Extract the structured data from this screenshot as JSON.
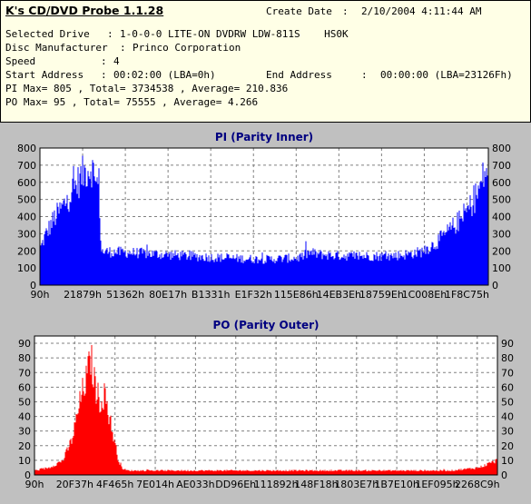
{
  "app": {
    "title": "K's CD/DVD Probe 1.1.28",
    "create_date_label": "Create Date",
    "create_date_value": "2/10/2004 4:11:44 AM"
  },
  "info": {
    "selected_drive_label": "Selected Drive",
    "selected_drive": "1-0-0-0 LITE-ON DVDRW LDW-811S    HS0K",
    "disc_manufacturer_label": "Disc Manufacturer",
    "disc_manufacturer": "Princo Corporation",
    "speed_label": "Speed",
    "speed": "4",
    "start_address_label": "Start Address",
    "start_address": "00:02:00 (LBA=0h)",
    "end_address_label": "End Address",
    "end_address": "00:00:00 (LBA=23126Fh)",
    "pi_line": "PI Max= 805 , Total= 3734538 , Average= 210.836",
    "po_line": "PO Max= 95 , Total= 75555 , Average= 4.266"
  },
  "colors": {
    "header_bg": "#ffffe6",
    "panel_bg": "#c0c0c0",
    "plot_bg": "#ffffff",
    "title_color": "#000080",
    "pi_color": "#0000ff",
    "po_color": "#ff0000",
    "grid_color": "#808080"
  },
  "chart_data": [
    {
      "type": "area",
      "title": "PI (Parity Inner)",
      "ylim": [
        0,
        800
      ],
      "y_ticks": [
        0,
        100,
        200,
        300,
        400,
        500,
        600,
        700,
        800
      ],
      "x_tick_labels": [
        "90h",
        "21879h",
        "51362h",
        "80E17h",
        "B1331h",
        "E1F32h",
        "115E86h",
        "14EB3Eh",
        "18759Eh",
        "1C008Eh",
        "1F8C75h"
      ],
      "grid": true,
      "series": [
        {
          "color": "#0000ff",
          "x": [
            0.0,
            0.01,
            0.03,
            0.05,
            0.07,
            0.09,
            0.1,
            0.115,
            0.12,
            0.125,
            0.13,
            0.135,
            0.14,
            0.15,
            0.2,
            0.3,
            0.4,
            0.5,
            0.58,
            0.6,
            0.62,
            0.65,
            0.7,
            0.78,
            0.82,
            0.85,
            0.88,
            0.91,
            0.94,
            0.96,
            0.98,
            0.99,
            1.0
          ],
          "values": [
            220,
            290,
            390,
            460,
            550,
            630,
            670,
            690,
            610,
            590,
            595,
            200,
            195,
            195,
            190,
            175,
            160,
            150,
            160,
            190,
            180,
            175,
            170,
            170,
            180,
            195,
            240,
            310,
            390,
            460,
            560,
            640,
            690
          ]
        }
      ]
    },
    {
      "type": "area",
      "title": "PO (Parity Outer)",
      "ylim": [
        0,
        95
      ],
      "y_ticks": [
        0,
        10,
        20,
        30,
        40,
        50,
        60,
        70,
        80,
        90
      ],
      "x_tick_labels": [
        "90h",
        "20F37h",
        "4F465h",
        "7E014h",
        "AE033h",
        "DD96Eh",
        "111892h",
        "148F18h",
        "1803E7h",
        "1B7E10h",
        "1EF095h",
        "2268C9h"
      ],
      "grid": true,
      "series": [
        {
          "color": "#ff0000",
          "x": [
            0.0,
            0.03,
            0.06,
            0.08,
            0.09,
            0.1,
            0.11,
            0.12,
            0.13,
            0.14,
            0.15,
            0.16,
            0.17,
            0.18,
            0.19,
            0.2,
            0.3,
            0.5,
            0.7,
            0.9,
            0.96,
            1.0
          ],
          "values": [
            3,
            5,
            10,
            25,
            40,
            55,
            65,
            80,
            60,
            50,
            55,
            40,
            25,
            10,
            4,
            3,
            3,
            3,
            3,
            3,
            5,
            10
          ]
        }
      ]
    }
  ]
}
